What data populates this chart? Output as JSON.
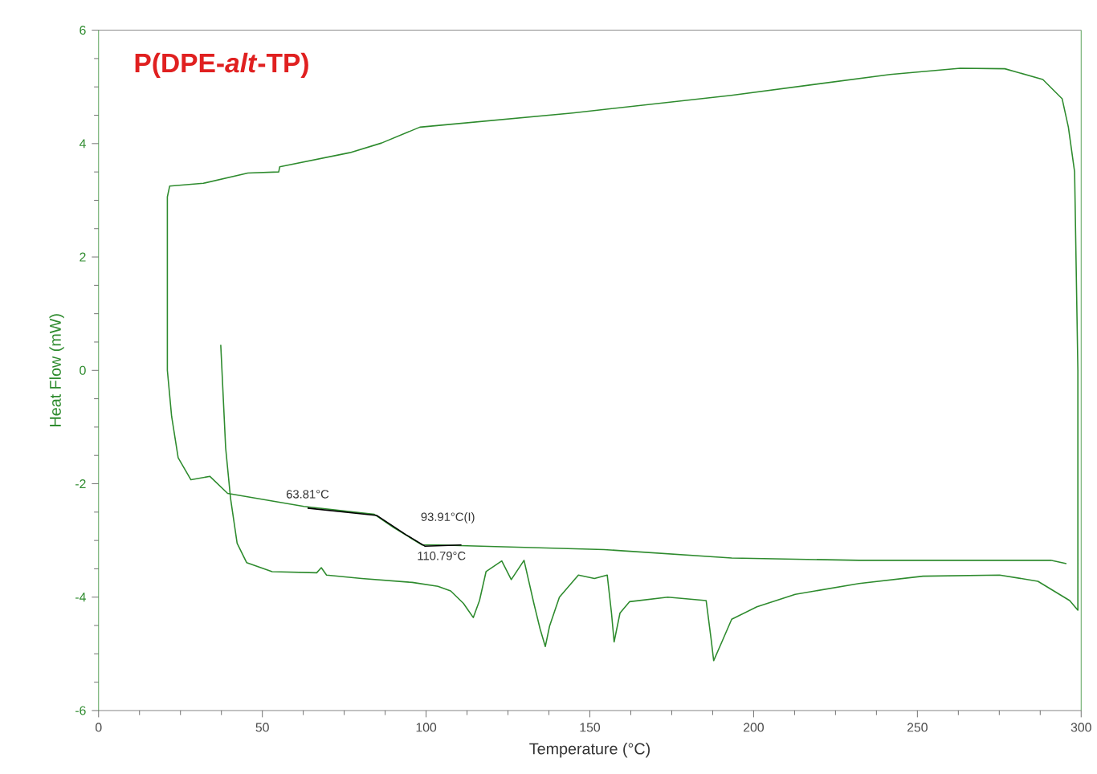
{
  "chart_data": {
    "type": "line",
    "title": "P(DPE-*alt*-TP)",
    "xlabel": "Temperature (°C)",
    "ylabel": "Heat Flow (mW)",
    "xlim": [
      0,
      300
    ],
    "ylim": [
      -6,
      6
    ],
    "xticks": [
      0,
      50,
      100,
      150,
      200,
      250,
      300
    ],
    "yticks": [
      -6,
      -4,
      -2,
      0,
      2,
      4,
      6
    ],
    "series": [
      {
        "color": "#2e8b2e",
        "x": [
          37.3,
          38.8,
          40.3,
          42.3,
          45.2,
          53,
          66.6,
          68,
          69.6,
          80.3,
          95.8,
          103.6,
          107.5,
          111.4,
          114.4,
          116.3,
          118.3,
          123.1,
          126,
          129.9,
          132.9,
          134.8,
          136.4,
          137.7,
          140.7,
          146.5,
          151.4,
          155.3,
          156.6,
          157.4,
          159.2,
          162.1,
          173.8,
          185.5,
          187,
          187.8,
          190.3,
          193.3,
          201,
          212.7,
          232.2,
          251.7,
          275.1,
          286.8,
          296.5,
          299,
          299,
          298,
          296.1,
          294.2,
          288.3,
          276.7,
          263.1,
          241.7,
          193.2,
          144.7,
          98.1,
          86.4,
          76.7,
          55.3,
          55,
          45.6,
          32,
          21.7,
          21,
          21,
          22.3,
          24.3,
          28.2,
          34,
          39.4,
          62.7,
          84.2,
          90,
          98.8,
          103.6,
          154.3,
          193.3,
          232.2,
          290.7,
          295.5
        ],
        "values": [
          0.45,
          -1.37,
          -2.26,
          -3.05,
          -3.39,
          -3.55,
          -3.57,
          -3.48,
          -3.61,
          -3.67,
          -3.74,
          -3.81,
          -3.89,
          -4.11,
          -4.36,
          -4.06,
          -3.55,
          -3.36,
          -3.69,
          -3.35,
          -4.11,
          -4.56,
          -4.87,
          -4.51,
          -4.0,
          -3.61,
          -3.67,
          -3.61,
          -4.28,
          -4.79,
          -4.28,
          -4.08,
          -4.0,
          -4.06,
          -4.73,
          -5.12,
          -4.79,
          -4.39,
          -4.17,
          -3.95,
          -3.76,
          -3.63,
          -3.61,
          -3.72,
          -4.06,
          -4.23,
          0,
          3.5,
          4.29,
          4.79,
          5.13,
          5.32,
          5.33,
          5.22,
          4.85,
          4.54,
          4.29,
          4.01,
          3.84,
          3.59,
          3.5,
          3.48,
          3.3,
          3.25,
          3.06,
          0,
          -0.81,
          -1.54,
          -1.93,
          -1.87,
          -2.17,
          -2.4,
          -2.54,
          -2.77,
          -3.08,
          -3.08,
          -3.16,
          -3.31,
          -3.35,
          -3.35,
          -3.41
        ]
      },
      {
        "color": "#000000",
        "x": [
          63.81,
          85,
          93.91,
          99.6,
          110.79
        ],
        "values": [
          -2.43,
          -2.56,
          -2.9,
          -3.1,
          -3.08
        ]
      }
    ],
    "annotations": [
      {
        "text": "63.81°C",
        "x": 63.81,
        "y": -2.43
      },
      {
        "text": "93.91°C(I)",
        "x": 93.91,
        "y": -2.9
      },
      {
        "text": "110.79°C",
        "x": 110.79,
        "y": -3.08
      }
    ]
  }
}
